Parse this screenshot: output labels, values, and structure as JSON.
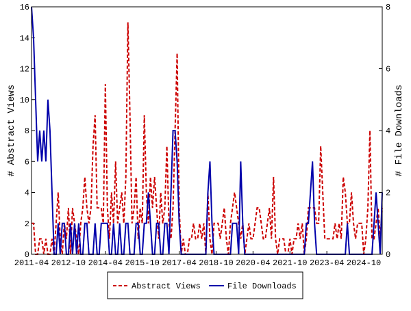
{
  "chart_data": {
    "type": "line",
    "y_label": "# Abstract Views",
    "y2_label": "# File Downloads",
    "categories": [
      "2011-04",
      null,
      null,
      null,
      null,
      null,
      null,
      null,
      null,
      null,
      null,
      null,
      null,
      null,
      null,
      null,
      null,
      null,
      "2012-10",
      null,
      null,
      null,
      null,
      null,
      null,
      null,
      null,
      null,
      null,
      null,
      null,
      null,
      null,
      null,
      null,
      null,
      "2014-04",
      null,
      null,
      null,
      null,
      null,
      null,
      null,
      null,
      null,
      null,
      null,
      null,
      null,
      null,
      null,
      null,
      null,
      "2015-10",
      null,
      null,
      null,
      null,
      null,
      null,
      null,
      null,
      null,
      null,
      null,
      null,
      null,
      null,
      null,
      null,
      null,
      "2017-04",
      null,
      null,
      null,
      null,
      null,
      null,
      null,
      null,
      null,
      null,
      null,
      null,
      null,
      null,
      null,
      null,
      null,
      "2018-10",
      null,
      null,
      null,
      null,
      null,
      null,
      null,
      null,
      null,
      null,
      null,
      null,
      null,
      null,
      null,
      null,
      null,
      "2020-04",
      null,
      null,
      null,
      null,
      null,
      null,
      null,
      null,
      null,
      null,
      null,
      null,
      null,
      null,
      null,
      null,
      null,
      "2021-10",
      null,
      null,
      null,
      null,
      null,
      null,
      null,
      null,
      null,
      null,
      null,
      null,
      null,
      null,
      null,
      null,
      null,
      "2023-04",
      null,
      null,
      null,
      null,
      null,
      null,
      null,
      null,
      null,
      null,
      null,
      null,
      null,
      null,
      null,
      null,
      null,
      "2024-10",
      null,
      null,
      null,
      null,
      null,
      null,
      null,
      null,
      null
    ],
    "series": [
      {
        "name": "Abstract Views",
        "color": "#cc0000",
        "dashed": true,
        "values": [
          2,
          2,
          0,
          0,
          1,
          1,
          0,
          1,
          0,
          0,
          1,
          0,
          2,
          4,
          1,
          0,
          2,
          1,
          3,
          0,
          3,
          2,
          1,
          0,
          2,
          3,
          5,
          3,
          2,
          3,
          7,
          9,
          3,
          3,
          3,
          2,
          11,
          3,
          1,
          4,
          2,
          6,
          2,
          3,
          4,
          2,
          5,
          15,
          9,
          2,
          3,
          5,
          1,
          3,
          2,
          9,
          4,
          2,
          5,
          3,
          5,
          3,
          1,
          4,
          2,
          3,
          7,
          2,
          1,
          3,
          8,
          13,
          3,
          0,
          1,
          0,
          0,
          1,
          1,
          2,
          1,
          1,
          2,
          1,
          2,
          0,
          4,
          1,
          0,
          2,
          2,
          2,
          1,
          2,
          3,
          1,
          0,
          2,
          3,
          4,
          3,
          2,
          1,
          2,
          0,
          1,
          2,
          1,
          1,
          2,
          3,
          3,
          2,
          1,
          1,
          2,
          3,
          1,
          5,
          1,
          0,
          1,
          1,
          1,
          0,
          0,
          1,
          0,
          1,
          1,
          2,
          1,
          2,
          0,
          1,
          3,
          3,
          3,
          3,
          2,
          2,
          7,
          4,
          1,
          1,
          1,
          1,
          1,
          2,
          1,
          2,
          1,
          5,
          4,
          2,
          2,
          4,
          2,
          1,
          2,
          2,
          2,
          0,
          1,
          3,
          8,
          1,
          1,
          2,
          3,
          1,
          3
        ]
      },
      {
        "name": "File Downloads",
        "color": "#0000aa",
        "axis": "y2",
        "dashed": false,
        "values": [
          8,
          7,
          5,
          3,
          4,
          3,
          4,
          3,
          5,
          4,
          2,
          0,
          0,
          1,
          0,
          1,
          1,
          0,
          0,
          1,
          0,
          1,
          0,
          1,
          0,
          0,
          1,
          1,
          0,
          0,
          0,
          1,
          0,
          0,
          1,
          1,
          1,
          1,
          0,
          0,
          1,
          0,
          0,
          1,
          0,
          0,
          1,
          1,
          0,
          0,
          0,
          1,
          1,
          0,
          0,
          1,
          1,
          2,
          1,
          0,
          0,
          1,
          1,
          0,
          0,
          1,
          1,
          0,
          2,
          4,
          4,
          3,
          1,
          0,
          0,
          0,
          0,
          0,
          0,
          0,
          0,
          0,
          0,
          0,
          0,
          0,
          2,
          3,
          1,
          0,
          0,
          0,
          0,
          0,
          0,
          0,
          0,
          0,
          1,
          1,
          1,
          0,
          3,
          1,
          0,
          0,
          0,
          0,
          0,
          0,
          0,
          0,
          0,
          0,
          0,
          0,
          0,
          0,
          0,
          0,
          0,
          0,
          0,
          0,
          0,
          0,
          0,
          0,
          0,
          0,
          0,
          0,
          0,
          0,
          1,
          1,
          2,
          3,
          1,
          0,
          0,
          0,
          0,
          0,
          0,
          0,
          0,
          0,
          0,
          0,
          0,
          0,
          0,
          0,
          1,
          0,
          0,
          0,
          0,
          0,
          0,
          0,
          0,
          0,
          0,
          0,
          0,
          1,
          2,
          1,
          0,
          2
        ]
      }
    ],
    "ylim": [
      0,
      16
    ],
    "yticks": [
      0,
      2,
      4,
      6,
      8,
      10,
      12,
      14,
      16
    ],
    "y2lim": [
      0,
      8
    ],
    "y2ticks": [
      0,
      2,
      4,
      6,
      8
    ],
    "legend": "bottom"
  }
}
